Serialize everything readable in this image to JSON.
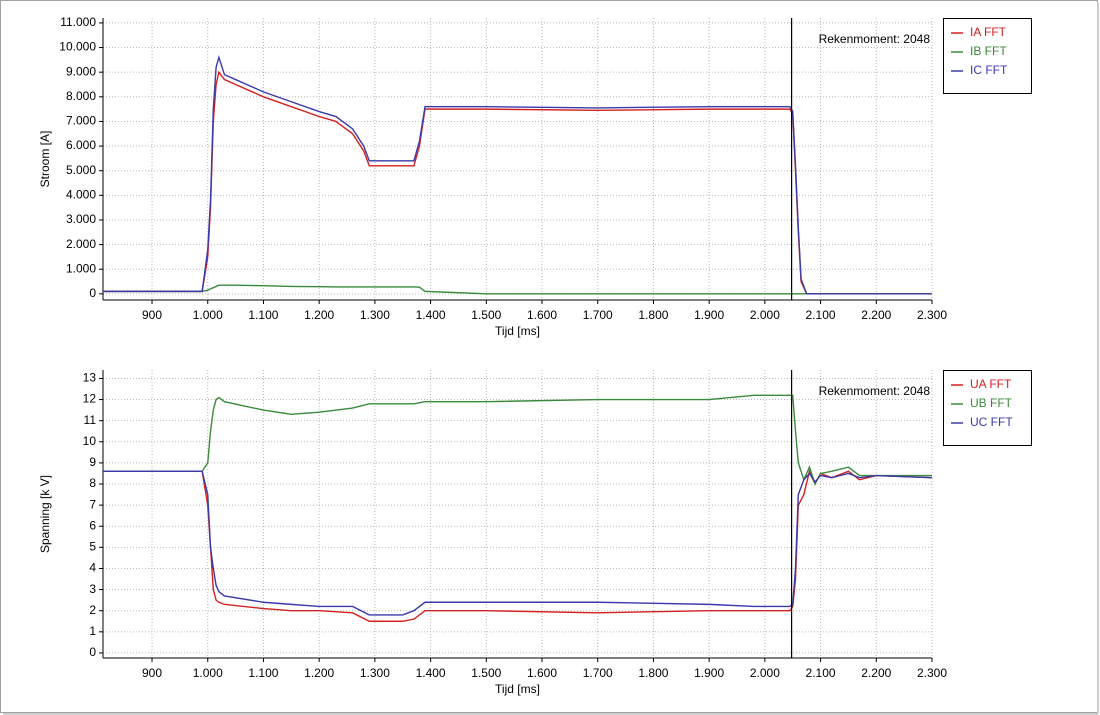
{
  "chart_data": [
    {
      "type": "line",
      "y_label": "Stroom [A]",
      "x_label": "Tijd [ms]",
      "annotation": "Rekenmoment: 2048",
      "cursor_x": 2048,
      "grid": true,
      "legend": "right",
      "xlim": [
        812,
        2300
      ],
      "ylim": [
        -250,
        11200
      ],
      "xticks": [
        900,
        {
          "value": 1000,
          "label": "1.000"
        },
        {
          "value": 1100,
          "label": "1.100"
        },
        {
          "value": 1200,
          "label": "1.200"
        },
        {
          "value": 1300,
          "label": "1.300"
        },
        {
          "value": 1400,
          "label": "1.400"
        },
        {
          "value": 1500,
          "label": "1.500"
        },
        {
          "value": 1600,
          "label": "1.600"
        },
        {
          "value": 1700,
          "label": "1.700"
        },
        {
          "value": 1800,
          "label": "1.800"
        },
        {
          "value": 1900,
          "label": "1.900"
        },
        {
          "value": 2000,
          "label": "2.000"
        },
        {
          "value": 2100,
          "label": "2.100"
        },
        {
          "value": 2200,
          "label": "2.200"
        },
        {
          "value": 2300,
          "label": "2.300"
        }
      ],
      "yticks": [
        0,
        {
          "value": 1000,
          "label": "1.000"
        },
        {
          "value": 2000,
          "label": "2.000"
        },
        {
          "value": 3000,
          "label": "3.000"
        },
        {
          "value": 4000,
          "label": "4.000"
        },
        {
          "value": 5000,
          "label": "5.000"
        },
        {
          "value": 6000,
          "label": "6.000"
        },
        {
          "value": 7000,
          "label": "7.000"
        },
        {
          "value": 8000,
          "label": "8.000"
        },
        {
          "value": 9000,
          "label": "9.000"
        },
        {
          "value": 10000,
          "label": "10.000"
        },
        {
          "value": 11000,
          "label": "11.000"
        }
      ],
      "x": [
        812,
        990,
        1000,
        1005,
        1010,
        1015,
        1020,
        1030,
        1050,
        1100,
        1150,
        1200,
        1230,
        1260,
        1280,
        1290,
        1370,
        1380,
        1390,
        1500,
        1700,
        1900,
        2045,
        2050,
        2055,
        2060,
        2065,
        2075,
        2300
      ],
      "series": [
        {
          "name": "IA FFT",
          "color": "#d42020",
          "values": [
            100,
            100,
            1500,
            3500,
            7000,
            8500,
            9000,
            8700,
            8500,
            8000,
            7600,
            7200,
            7000,
            6500,
            5800,
            5200,
            5200,
            6000,
            7500,
            7500,
            7450,
            7500,
            7500,
            7300,
            5000,
            2500,
            500,
            0,
            0
          ]
        },
        {
          "name": "IB FFT",
          "color": "#3a8a3a",
          "values": [
            100,
            100,
            150,
            200,
            250,
            300,
            350,
            350,
            350,
            330,
            300,
            290,
            280,
            280,
            280,
            280,
            280,
            270,
            100,
            0,
            0,
            0,
            0,
            0,
            0,
            0,
            0,
            0,
            0
          ]
        },
        {
          "name": "IC FFT",
          "color": "#3a3aaa",
          "values": [
            100,
            100,
            1800,
            3800,
            7500,
            9200,
            9600,
            8900,
            8700,
            8200,
            7800,
            7400,
            7200,
            6700,
            6000,
            5400,
            5400,
            6200,
            7600,
            7600,
            7550,
            7600,
            7600,
            7400,
            5200,
            2700,
            600,
            0,
            0
          ]
        }
      ]
    },
    {
      "type": "line",
      "y_label": "Spanning [k V]",
      "x_label": "Tijd [ms]",
      "annotation": "Rekenmoment: 2048",
      "cursor_x": 2048,
      "grid": true,
      "legend": "right",
      "xlim": [
        812,
        2300
      ],
      "ylim": [
        -0.24,
        13.4
      ],
      "xticks": [
        900,
        {
          "value": 1000,
          "label": "1.000"
        },
        {
          "value": 1100,
          "label": "1.100"
        },
        {
          "value": 1200,
          "label": "1.200"
        },
        {
          "value": 1300,
          "label": "1.300"
        },
        {
          "value": 1400,
          "label": "1.400"
        },
        {
          "value": 1500,
          "label": "1.500"
        },
        {
          "value": 1600,
          "label": "1.600"
        },
        {
          "value": 1700,
          "label": "1.700"
        },
        {
          "value": 1800,
          "label": "1.800"
        },
        {
          "value": 1900,
          "label": "1.900"
        },
        {
          "value": 2000,
          "label": "2.000"
        },
        {
          "value": 2100,
          "label": "2.100"
        },
        {
          "value": 2200,
          "label": "2.200"
        },
        {
          "value": 2300,
          "label": "2.300"
        }
      ],
      "yticks": [
        0,
        1,
        2,
        3,
        4,
        5,
        6,
        7,
        8,
        9,
        10,
        11,
        12,
        13
      ],
      "x": [
        812,
        990,
        1000,
        1005,
        1010,
        1015,
        1020,
        1030,
        1100,
        1150,
        1200,
        1260,
        1290,
        1350,
        1370,
        1390,
        1500,
        1700,
        1900,
        1980,
        2045,
        2050,
        2055,
        2060,
        2070,
        2080,
        2090,
        2100,
        2120,
        2150,
        2170,
        2200,
        2300
      ],
      "series": [
        {
          "name": "UA FFT",
          "color": "#d42020",
          "values": [
            8.6,
            8.6,
            7,
            5,
            3,
            2.5,
            2.4,
            2.3,
            2.1,
            2.0,
            2.0,
            1.9,
            1.5,
            1.5,
            1.6,
            2.0,
            2.0,
            1.9,
            2.0,
            2.0,
            2.0,
            2.2,
            3.5,
            7,
            7.5,
            8.6,
            8.0,
            8.5,
            8.3,
            8.6,
            8.2,
            8.4,
            8.3
          ]
        },
        {
          "name": "UB FFT",
          "color": "#3a8a3a",
          "values": [
            8.6,
            8.6,
            9,
            10.5,
            11.5,
            12,
            12.1,
            11.9,
            11.5,
            11.3,
            11.4,
            11.6,
            11.8,
            11.8,
            11.8,
            11.9,
            11.9,
            12.0,
            12.0,
            12.2,
            12.2,
            12.2,
            10.5,
            9,
            8.2,
            8.8,
            8.0,
            8.5,
            8.6,
            8.8,
            8.4,
            8.4,
            8.4
          ]
        },
        {
          "name": "UC FFT",
          "color": "#3a3aaa",
          "values": [
            8.6,
            8.6,
            7.5,
            5,
            4,
            3.2,
            2.9,
            2.7,
            2.4,
            2.3,
            2.2,
            2.2,
            1.8,
            1.8,
            2.0,
            2.4,
            2.4,
            2.4,
            2.3,
            2.2,
            2.2,
            2.3,
            4,
            7.5,
            8.2,
            8.5,
            8.1,
            8.4,
            8.3,
            8.5,
            8.3,
            8.4,
            8.3
          ]
        }
      ]
    }
  ]
}
